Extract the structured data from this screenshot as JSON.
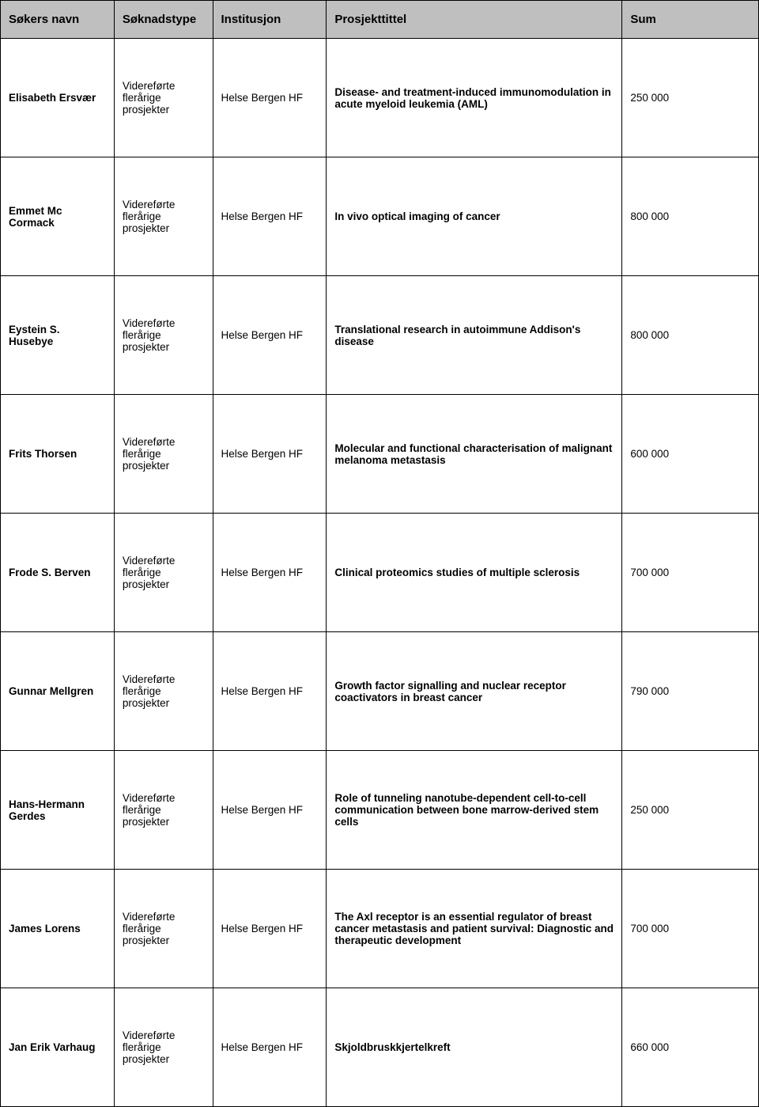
{
  "table": {
    "header_bg": "#bfbfbf",
    "border_color": "#000000",
    "columns": [
      {
        "key": "name",
        "label": "Søkers navn",
        "bold": true,
        "width": "15%"
      },
      {
        "key": "type",
        "label": "Søknadstype",
        "bold": false,
        "width": "13%"
      },
      {
        "key": "inst",
        "label": "Institusjon",
        "bold": false,
        "width": "15%"
      },
      {
        "key": "title",
        "label": "Prosjekttittel",
        "bold": true,
        "width": "39%"
      },
      {
        "key": "sum",
        "label": "Sum",
        "bold": false,
        "width": "18%"
      }
    ],
    "rows": [
      {
        "name": "Elisabeth Ersvær",
        "type": "Videreførte flerårige prosjekter",
        "inst": "Helse Bergen HF",
        "title": "Disease- and treatment-induced immunomodulation in acute myeloid leukemia (AML)",
        "sum": "250 000"
      },
      {
        "name": "Emmet Mc Cormack",
        "type": "Videreførte flerårige prosjekter",
        "inst": "Helse Bergen HF",
        "title": "In vivo optical imaging of cancer",
        "sum": "800 000"
      },
      {
        "name": "Eystein S. Husebye",
        "type": "Videreførte flerårige prosjekter",
        "inst": "Helse Bergen HF",
        "title": "Translational research in autoimmune Addison's disease",
        "sum": "800 000"
      },
      {
        "name": "Frits Thorsen",
        "type": "Videreførte flerårige prosjekter",
        "inst": "Helse Bergen HF",
        "title": "Molecular and functional characterisation of malignant melanoma metastasis",
        "sum": "600 000"
      },
      {
        "name": "Frode S. Berven",
        "type": "Videreførte flerårige prosjekter",
        "inst": "Helse Bergen HF",
        "title": "Clinical proteomics studies of multiple sclerosis",
        "sum": "700 000"
      },
      {
        "name": "Gunnar Mellgren",
        "type": "Videreførte flerårige prosjekter",
        "inst": "Helse Bergen HF",
        "title": "Growth factor signalling and nuclear receptor coactivators in breast cancer",
        "sum": "790 000"
      },
      {
        "name": "Hans-Hermann Gerdes",
        "type": "Videreførte flerårige prosjekter",
        "inst": "Helse Bergen HF",
        "title": "Role of tunneling nanotube-dependent cell-to-cell communication between bone marrow-derived stem cells",
        "sum": "250 000"
      },
      {
        "name": "James Lorens",
        "type": "Videreførte flerårige prosjekter",
        "inst": "Helse Bergen HF",
        "title": "The Axl receptor is an essential regulator of breast cancer metastasis and patient survival: Diagnostic and therapeutic development",
        "sum": "700 000"
      },
      {
        "name": "Jan Erik Varhaug",
        "type": "Videreførte flerårige prosjekter",
        "inst": "Helse Bergen HF",
        "title": "Skjoldbruskkjertelkreft",
        "sum": "660 000"
      }
    ]
  }
}
